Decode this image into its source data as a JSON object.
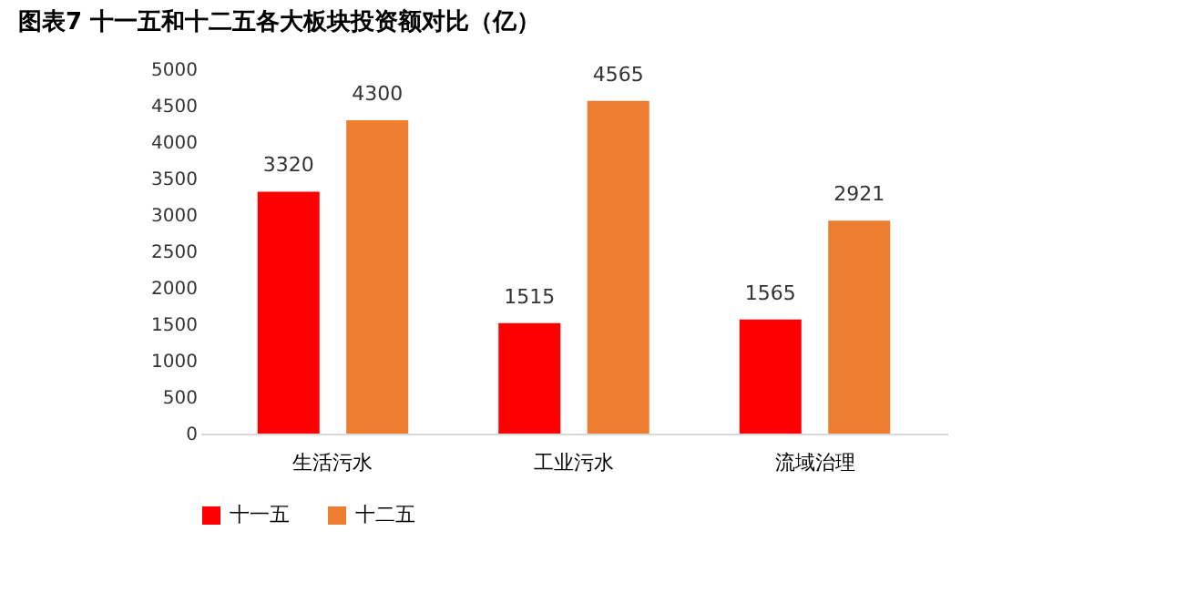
{
  "chart_data": {
    "type": "bar",
    "title": "图表7 十一五和十二五各大板块投资额对比（亿）",
    "categories": [
      "生活污水",
      "工业污水",
      "流域治理"
    ],
    "series": [
      {
        "name": "十一五",
        "color": "#ff0000",
        "values": [
          3320,
          1515,
          1565
        ]
      },
      {
        "name": "十二五",
        "color": "#ed7d31",
        "values": [
          4300,
          4565,
          2921
        ]
      }
    ],
    "ylim": [
      0,
      5000
    ],
    "yticks": [
      0,
      500,
      1000,
      1500,
      2000,
      2500,
      3000,
      3500,
      4000,
      4500,
      5000
    ],
    "grid": false,
    "legend": "bottom",
    "data_labels": true
  }
}
